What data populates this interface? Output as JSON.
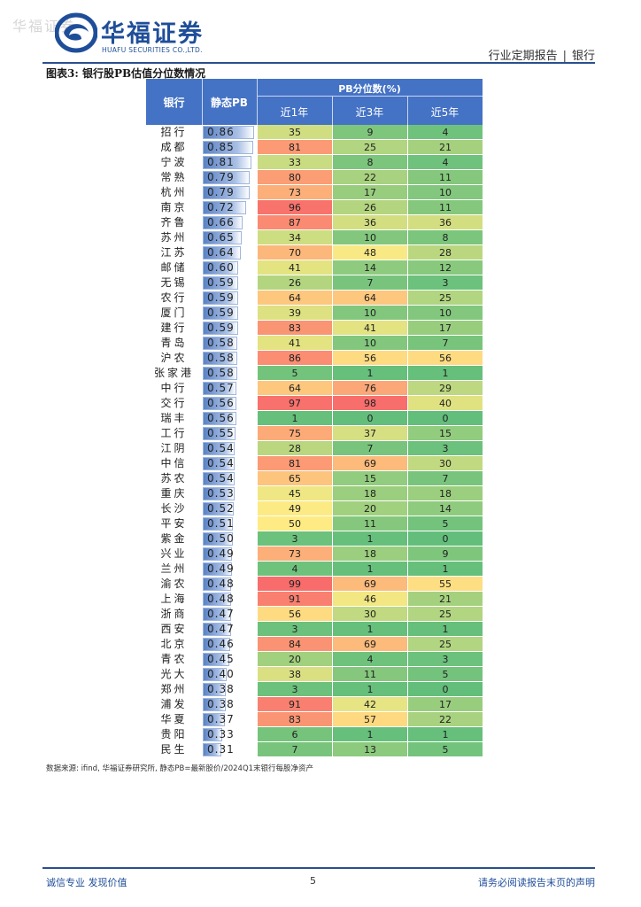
{
  "watermark": "华福证券",
  "logo": {
    "cn": "华福证券",
    "en": "HUAFU SECURITIES CO.,LTD."
  },
  "header": {
    "report_type": "行业定期报告",
    "separator": "|",
    "sector": "银行"
  },
  "figure_title": "图表3: 银行股PB估值分位数情况",
  "table": {
    "col_bank": "银行",
    "col_pb": "静态PB",
    "group_header": "PB分位数(%)",
    "col_1y": "近1年",
    "col_3y": "近3年",
    "col_5y": "近5年"
  },
  "chart_data": {
    "type": "table",
    "title": "银行股PB估值分位数情况",
    "columns": [
      "银行",
      "静态PB",
      "近1年",
      "近3年",
      "近5年"
    ],
    "rows": [
      [
        "招行",
        "0.86",
        35,
        9,
        4
      ],
      [
        "成都",
        "0.85",
        81,
        25,
        21
      ],
      [
        "宁波",
        "0.81",
        33,
        8,
        4
      ],
      [
        "常熟",
        "0.79",
        80,
        22,
        11
      ],
      [
        "杭州",
        "0.79",
        73,
        17,
        10
      ],
      [
        "南京",
        "0.72",
        96,
        26,
        11
      ],
      [
        "齐鲁",
        "0.66",
        87,
        36,
        36
      ],
      [
        "苏州",
        "0.65",
        34,
        10,
        8
      ],
      [
        "江苏",
        "0.64",
        70,
        48,
        28
      ],
      [
        "邮储",
        "0.60",
        41,
        14,
        12
      ],
      [
        "无锡",
        "0.59",
        26,
        7,
        3
      ],
      [
        "农行",
        "0.59",
        64,
        64,
        25
      ],
      [
        "厦门",
        "0.59",
        39,
        10,
        10
      ],
      [
        "建行",
        "0.59",
        83,
        41,
        17
      ],
      [
        "青岛",
        "0.58",
        41,
        10,
        7
      ],
      [
        "沪农",
        "0.58",
        86,
        56,
        56
      ],
      [
        "张家港",
        "0.58",
        5,
        1,
        1
      ],
      [
        "中行",
        "0.57",
        64,
        76,
        29
      ],
      [
        "交行",
        "0.56",
        97,
        98,
        40
      ],
      [
        "瑞丰",
        "0.56",
        1,
        0,
        0
      ],
      [
        "工行",
        "0.55",
        75,
        37,
        15
      ],
      [
        "江阴",
        "0.54",
        28,
        7,
        3
      ],
      [
        "中信",
        "0.54",
        81,
        69,
        30
      ],
      [
        "苏农",
        "0.54",
        65,
        15,
        7
      ],
      [
        "重庆",
        "0.53",
        45,
        18,
        18
      ],
      [
        "长沙",
        "0.52",
        49,
        20,
        14
      ],
      [
        "平安",
        "0.51",
        50,
        11,
        5
      ],
      [
        "紫金",
        "0.50",
        3,
        1,
        0
      ],
      [
        "兴业",
        "0.49",
        73,
        18,
        9
      ],
      [
        "兰州",
        "0.49",
        4,
        1,
        1
      ],
      [
        "渝农",
        "0.48",
        99,
        69,
        55
      ],
      [
        "上海",
        "0.48",
        91,
        46,
        21
      ],
      [
        "浙商",
        "0.47",
        56,
        30,
        25
      ],
      [
        "西安",
        "0.47",
        3,
        1,
        1
      ],
      [
        "北京",
        "0.46",
        84,
        69,
        25
      ],
      [
        "青农",
        "0.45",
        20,
        4,
        3
      ],
      [
        "光大",
        "0.40",
        38,
        11,
        5
      ],
      [
        "郑州",
        "0.38",
        3,
        1,
        0
      ],
      [
        "浦发",
        "0.38",
        91,
        42,
        17
      ],
      [
        "华夏",
        "0.37",
        83,
        57,
        22
      ],
      [
        "贵阳",
        "0.33",
        6,
        1,
        1
      ],
      [
        "民生",
        "0.31",
        7,
        13,
        5
      ]
    ],
    "color_scale": {
      "low": "#63be7b",
      "mid": "#ffeb84",
      "high": "#f8696b"
    }
  },
  "source_note": "数据来源: ifind, 华福证券研究所, 静态PB=最新股价/2024Q1末银行每股净资产",
  "footer": {
    "left": "诚信专业 发现价值",
    "page": "5",
    "right": "请务必阅读报告末页的声明"
  }
}
